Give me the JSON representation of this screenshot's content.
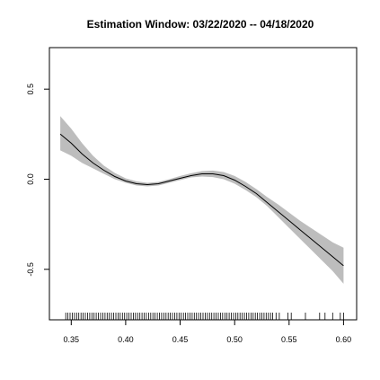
{
  "chart_data": {
    "type": "line",
    "title": "Estimation Window: 03/22/2020 -- 04/18/2020",
    "xlabel": "",
    "ylabel": "",
    "xlim": [
      0.33,
      0.612
    ],
    "ylim": [
      -0.78,
      0.73
    ],
    "x_ticks": [
      0.35,
      0.4,
      0.45,
      0.5,
      0.55,
      0.6
    ],
    "x_tick_labels": [
      "0.35",
      "0.40",
      "0.45",
      "0.50",
      "0.55",
      "0.60"
    ],
    "y_ticks": [
      -0.5,
      0.0,
      0.5
    ],
    "y_tick_labels": [
      "-0.5",
      "0.0",
      "0.5"
    ],
    "grid": false,
    "series": [
      {
        "x": [
          0.34,
          0.35,
          0.36,
          0.37,
          0.38,
          0.39,
          0.4,
          0.41,
          0.42,
          0.43,
          0.44,
          0.45,
          0.46,
          0.47,
          0.48,
          0.49,
          0.5,
          0.51,
          0.52,
          0.53,
          0.54,
          0.55,
          0.56,
          0.57,
          0.58,
          0.59,
          0.6
        ],
        "y": [
          0.25,
          0.2,
          0.14,
          0.09,
          0.05,
          0.015,
          -0.01,
          -0.025,
          -0.03,
          -0.025,
          -0.01,
          0.005,
          0.02,
          0.03,
          0.03,
          0.02,
          -0.005,
          -0.04,
          -0.08,
          -0.13,
          -0.18,
          -0.23,
          -0.28,
          -0.33,
          -0.38,
          -0.43,
          -0.48
        ],
        "lower": [
          0.16,
          0.13,
          0.09,
          0.06,
          0.03,
          0.0,
          -0.02,
          -0.035,
          -0.04,
          -0.035,
          -0.02,
          -0.005,
          0.01,
          0.015,
          0.012,
          0.0,
          -0.025,
          -0.06,
          -0.1,
          -0.15,
          -0.21,
          -0.27,
          -0.33,
          -0.39,
          -0.45,
          -0.51,
          -0.58
        ],
        "upper": [
          0.35,
          0.28,
          0.2,
          0.13,
          0.075,
          0.035,
          0.005,
          -0.012,
          -0.02,
          -0.015,
          0.0,
          0.018,
          0.033,
          0.045,
          0.048,
          0.04,
          0.018,
          -0.015,
          -0.055,
          -0.1,
          -0.14,
          -0.185,
          -0.23,
          -0.27,
          -0.31,
          -0.35,
          -0.38
        ]
      }
    ],
    "rug_x": [
      0.345,
      0.347,
      0.349,
      0.351,
      0.353,
      0.355,
      0.357,
      0.359,
      0.361,
      0.363,
      0.365,
      0.367,
      0.369,
      0.371,
      0.373,
      0.375,
      0.377,
      0.379,
      0.381,
      0.383,
      0.385,
      0.387,
      0.389,
      0.391,
      0.393,
      0.395,
      0.397,
      0.399,
      0.401,
      0.403,
      0.405,
      0.407,
      0.409,
      0.411,
      0.413,
      0.415,
      0.417,
      0.419,
      0.421,
      0.423,
      0.425,
      0.427,
      0.429,
      0.431,
      0.433,
      0.435,
      0.437,
      0.439,
      0.441,
      0.443,
      0.445,
      0.447,
      0.449,
      0.451,
      0.453,
      0.455,
      0.457,
      0.459,
      0.461,
      0.463,
      0.465,
      0.467,
      0.469,
      0.471,
      0.473,
      0.475,
      0.477,
      0.479,
      0.481,
      0.483,
      0.485,
      0.487,
      0.489,
      0.491,
      0.493,
      0.495,
      0.497,
      0.499,
      0.501,
      0.503,
      0.505,
      0.507,
      0.509,
      0.511,
      0.513,
      0.515,
      0.517,
      0.519,
      0.521,
      0.523,
      0.525,
      0.527,
      0.529,
      0.531,
      0.533,
      0.535,
      0.538,
      0.541,
      0.549,
      0.552,
      0.565,
      0.578,
      0.583,
      0.59,
      0.597,
      0.6
    ]
  }
}
